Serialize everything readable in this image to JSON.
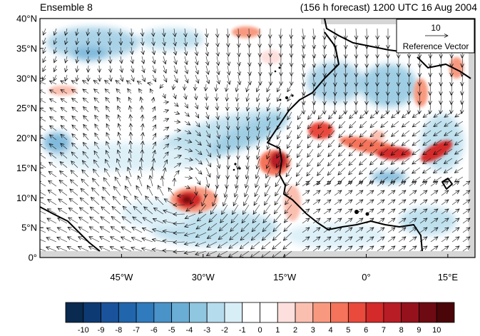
{
  "header": {
    "left_title": "Ensemble 8",
    "right_title": "(156 h forecast) 1200 UTC 16 Aug 2004"
  },
  "map": {
    "lat_labels": [
      "40°N",
      "35°N",
      "30°N",
      "25°N",
      "20°N",
      "15°N",
      "10°N",
      "5°N",
      "0°"
    ],
    "lon_labels": [
      "45°W",
      "30°W",
      "15°W",
      "0°",
      "15°E"
    ],
    "lat_range": [
      0,
      40
    ],
    "lon_range": [
      -60,
      20
    ],
    "land_color": "#ffffff",
    "missing_color": "#d3d3d3"
  },
  "reference_vector": {
    "magnitude": "10",
    "label": "Reference Vector"
  },
  "colorbar": {
    "labels": [
      "-10",
      "-9",
      "-8",
      "-7",
      "-6",
      "-5",
      "-4",
      "-3",
      "-2",
      "-1",
      "0",
      "1",
      "2",
      "3",
      "4",
      "5",
      "6",
      "7",
      "8",
      "9",
      "10"
    ],
    "colors": [
      "#0a2a4f",
      "#0d3a73",
      "#1a539b",
      "#2166ac",
      "#2f7bbd",
      "#4a93c9",
      "#6aaed6",
      "#8fc6e0",
      "#b5dcec",
      "#d8eef7",
      "#ffffff",
      "#ffffff",
      "#fde0dd",
      "#fbbfb0",
      "#f8997f",
      "#f4735a",
      "#e94a3c",
      "#d42a2a",
      "#b81c25",
      "#95121c",
      "#6e0a12",
      "#4a0509"
    ]
  },
  "colors": {
    "blue_anomaly": "#9ccbe3",
    "blue_strong": "#4d8fc1",
    "red_anomaly": "#f4a79a",
    "red_strong": "#c81f24",
    "red_core": "#7a0b10"
  }
}
